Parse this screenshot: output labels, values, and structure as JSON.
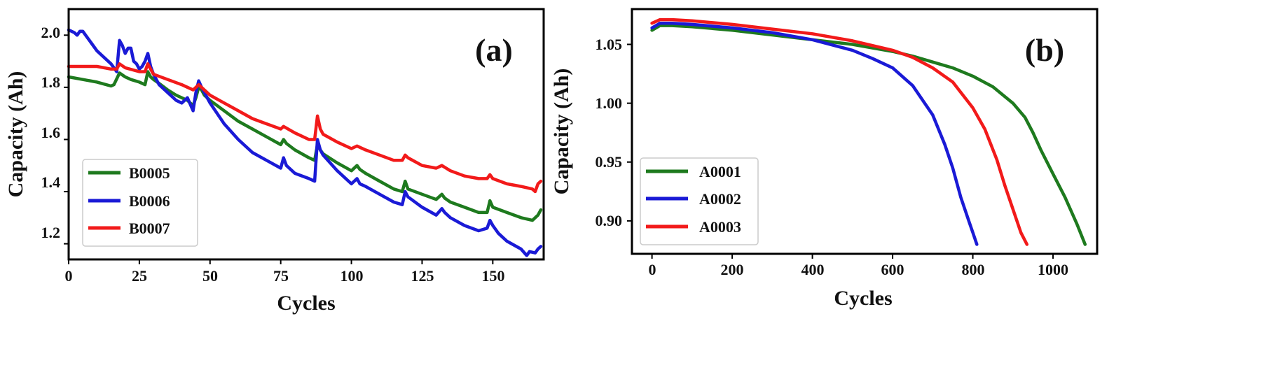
{
  "chart_data": [
    {
      "type": "line",
      "panel_label": "(a)",
      "xlabel": "Cycles",
      "ylabel": "Capacity (Ah)",
      "xlim": [
        0,
        168
      ],
      "ylim": [
        1.14,
        2.1
      ],
      "xticks": [
        0,
        25,
        50,
        75,
        100,
        125,
        150
      ],
      "xtick_labels": [
        "0",
        "25",
        "50",
        "75",
        "100",
        "125",
        "150"
      ],
      "yticks": [
        1.2,
        1.4,
        1.6,
        1.8,
        2.0
      ],
      "ytick_labels": [
        "1.2",
        "1.4",
        "1.6",
        "1.8",
        "2.0"
      ],
      "legend_position": "lower-left",
      "series": [
        {
          "name": "B0005",
          "color": "#1e7a1e",
          "x": [
            0,
            5,
            10,
            15,
            16,
            18,
            20,
            22,
            25,
            27,
            28,
            29,
            30,
            32,
            35,
            38,
            40,
            42,
            44,
            45,
            46,
            47,
            48,
            50,
            55,
            60,
            65,
            70,
            75,
            76,
            77,
            80,
            85,
            87,
            88,
            89,
            90,
            95,
            100,
            102,
            103,
            105,
            110,
            115,
            118,
            119,
            120,
            125,
            130,
            132,
            133,
            135,
            140,
            145,
            148,
            149,
            150,
            155,
            160,
            164,
            166,
            167
          ],
          "values": [
            1.84,
            1.83,
            1.82,
            1.805,
            1.81,
            1.855,
            1.84,
            1.83,
            1.82,
            1.81,
            1.86,
            1.84,
            1.83,
            1.815,
            1.79,
            1.77,
            1.76,
            1.75,
            1.73,
            1.76,
            1.8,
            1.79,
            1.77,
            1.75,
            1.71,
            1.67,
            1.64,
            1.61,
            1.58,
            1.6,
            1.585,
            1.56,
            1.53,
            1.52,
            1.58,
            1.56,
            1.545,
            1.51,
            1.48,
            1.5,
            1.485,
            1.47,
            1.44,
            1.41,
            1.4,
            1.44,
            1.41,
            1.39,
            1.37,
            1.39,
            1.375,
            1.36,
            1.34,
            1.32,
            1.32,
            1.365,
            1.34,
            1.32,
            1.3,
            1.29,
            1.31,
            1.33
          ]
        },
        {
          "name": "B0006",
          "color": "#1a1ad6",
          "x": [
            0,
            2,
            3,
            4,
            5,
            6,
            8,
            10,
            12,
            15,
            17,
            18,
            19,
            20,
            21,
            22,
            23,
            24,
            25,
            26,
            27,
            28,
            29,
            30,
            32,
            35,
            38,
            40,
            42,
            44,
            45,
            46,
            47,
            48,
            50,
            55,
            60,
            65,
            70,
            75,
            76,
            77,
            80,
            85,
            87,
            88,
            89,
            90,
            95,
            100,
            102,
            103,
            105,
            110,
            115,
            118,
            119,
            120,
            125,
            130,
            132,
            133,
            135,
            140,
            145,
            148,
            149,
            150,
            152,
            155,
            160,
            162,
            163,
            165,
            166,
            167
          ],
          "values": [
            2.02,
            2.01,
            2.0,
            2.015,
            2.015,
            2.0,
            1.97,
            1.94,
            1.92,
            1.89,
            1.86,
            1.98,
            1.96,
            1.93,
            1.95,
            1.95,
            1.9,
            1.89,
            1.87,
            1.88,
            1.9,
            1.93,
            1.88,
            1.85,
            1.81,
            1.78,
            1.75,
            1.74,
            1.76,
            1.71,
            1.78,
            1.825,
            1.8,
            1.78,
            1.74,
            1.66,
            1.6,
            1.55,
            1.52,
            1.49,
            1.53,
            1.5,
            1.47,
            1.45,
            1.44,
            1.6,
            1.56,
            1.54,
            1.48,
            1.43,
            1.45,
            1.43,
            1.42,
            1.39,
            1.36,
            1.35,
            1.4,
            1.38,
            1.34,
            1.31,
            1.335,
            1.32,
            1.3,
            1.27,
            1.25,
            1.26,
            1.29,
            1.27,
            1.24,
            1.21,
            1.18,
            1.155,
            1.17,
            1.165,
            1.18,
            1.19
          ]
        },
        {
          "name": "B0007",
          "color": "#f21a1a",
          "x": [
            0,
            5,
            10,
            15,
            17,
            18,
            20,
            25,
            27,
            28,
            29,
            30,
            35,
            40,
            44,
            45,
            46,
            47,
            48,
            50,
            55,
            60,
            65,
            70,
            75,
            76,
            80,
            85,
            87,
            88,
            89,
            90,
            95,
            100,
            102,
            105,
            110,
            115,
            118,
            119,
            120,
            125,
            130,
            132,
            135,
            140,
            145,
            148,
            149,
            150,
            155,
            160,
            164,
            165,
            166,
            167
          ],
          "values": [
            1.88,
            1.88,
            1.88,
            1.87,
            1.87,
            1.89,
            1.875,
            1.86,
            1.86,
            1.89,
            1.87,
            1.85,
            1.83,
            1.81,
            1.79,
            1.8,
            1.81,
            1.8,
            1.79,
            1.77,
            1.74,
            1.71,
            1.68,
            1.66,
            1.64,
            1.65,
            1.625,
            1.6,
            1.6,
            1.69,
            1.64,
            1.62,
            1.59,
            1.565,
            1.575,
            1.56,
            1.54,
            1.52,
            1.52,
            1.54,
            1.53,
            1.5,
            1.49,
            1.5,
            1.48,
            1.46,
            1.45,
            1.45,
            1.465,
            1.45,
            1.43,
            1.42,
            1.41,
            1.4,
            1.43,
            1.44
          ]
        }
      ]
    },
    {
      "type": "line",
      "panel_label": "(b)",
      "xlabel": "Cycles",
      "ylabel": "Capacity (Ah)",
      "xlim": [
        -50,
        1110
      ],
      "ylim": [
        0.872,
        1.08
      ],
      "xticks": [
        0,
        200,
        400,
        600,
        800,
        1000
      ],
      "xtick_labels": [
        "0",
        "200",
        "400",
        "600",
        "800",
        "1000"
      ],
      "yticks": [
        0.9,
        0.95,
        1.0,
        1.05
      ],
      "ytick_labels": [
        "0.90",
        "0.95",
        "1.00",
        "1.05"
      ],
      "legend_position": "lower-left",
      "series": [
        {
          "name": "A0001",
          "color": "#1e7a1e",
          "x": [
            0,
            20,
            50,
            100,
            200,
            300,
            400,
            500,
            600,
            650,
            700,
            750,
            800,
            850,
            900,
            930,
            950,
            970,
            1000,
            1030,
            1060,
            1080
          ],
          "values": [
            1.062,
            1.066,
            1.066,
            1.065,
            1.062,
            1.058,
            1.054,
            1.05,
            1.044,
            1.04,
            1.035,
            1.03,
            1.023,
            1.014,
            1.0,
            0.988,
            0.975,
            0.96,
            0.94,
            0.92,
            0.897,
            0.88
          ]
        },
        {
          "name": "A0002",
          "color": "#1a1ad6",
          "x": [
            0,
            20,
            50,
            100,
            200,
            300,
            400,
            500,
            550,
            600,
            650,
            700,
            730,
            750,
            770,
            790,
            800,
            810
          ],
          "values": [
            1.064,
            1.068,
            1.068,
            1.067,
            1.064,
            1.06,
            1.054,
            1.045,
            1.038,
            1.03,
            1.015,
            0.99,
            0.965,
            0.945,
            0.92,
            0.9,
            0.89,
            0.88
          ]
        },
        {
          "name": "A0003",
          "color": "#f21a1a",
          "x": [
            0,
            20,
            50,
            100,
            200,
            300,
            400,
            500,
            600,
            650,
            700,
            750,
            800,
            830,
            860,
            880,
            900,
            920,
            935
          ],
          "values": [
            1.068,
            1.071,
            1.071,
            1.07,
            1.067,
            1.063,
            1.059,
            1.053,
            1.045,
            1.039,
            1.03,
            1.018,
            0.996,
            0.978,
            0.952,
            0.93,
            0.91,
            0.89,
            0.88
          ]
        }
      ]
    }
  ]
}
